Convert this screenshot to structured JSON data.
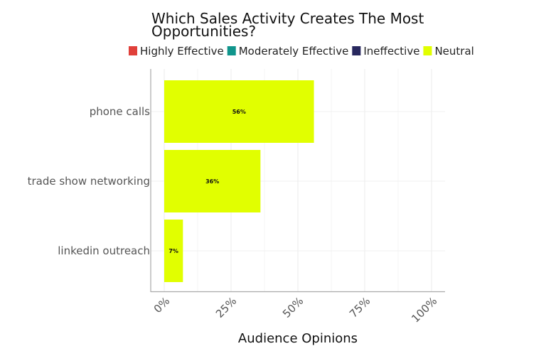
{
  "chart_data": {
    "type": "bar",
    "orientation": "horizontal",
    "title_lines": [
      "Which Sales Activity Creates The Most",
      "Opportunities?"
    ],
    "xlabel": "Audience Opinions",
    "ylabel": "",
    "categories": [
      "phone calls",
      "trade show networking",
      "linkedin outreach"
    ],
    "series": [
      {
        "name": "Neutral",
        "color": "#e1ff00",
        "values": [
          56,
          36,
          7
        ],
        "labels": [
          "56%",
          "36%",
          "7%"
        ]
      }
    ],
    "legend": {
      "placement": "top",
      "entries": [
        {
          "label": "Highly Effective",
          "color": "#e0403a"
        },
        {
          "label": "Moderately Effective",
          "color": "#10958c"
        },
        {
          "label": "Ineffective",
          "color": "#28285e"
        },
        {
          "label": "Neutral",
          "color": "#e1ff00"
        }
      ]
    },
    "xlim": [
      0,
      100
    ],
    "xticks": [
      0,
      25,
      50,
      75,
      100
    ],
    "xtick_labels": [
      "0%",
      "25%",
      "50%",
      "75%",
      "100%"
    ],
    "grid": true
  }
}
